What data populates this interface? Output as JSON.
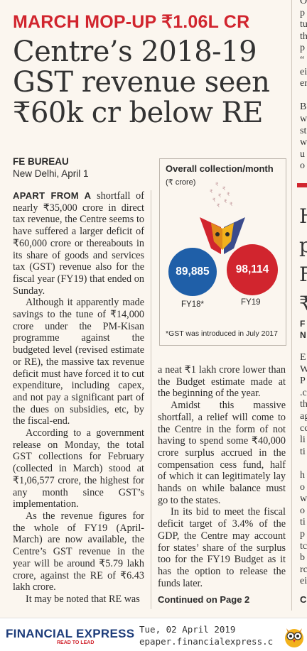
{
  "kicker": "MARCH MOP-UP ₹1.06L CR",
  "headline": "Centre’s 2018-19 GST revenue seen ₹60k cr below RE",
  "byline": {
    "source": "FE BUREAU",
    "dateline": "New Delhi, April 1"
  },
  "col1": {
    "lead": "APART FROM A",
    "p1_rest": " shortfall of nearly ₹35,000 crore in direct tax revenue, the Centre seems to have suffered a larger deficit of ₹60,000 crore or thereabouts in its share of goods and services tax (GST) revenue also for the fiscal year (FY19) that ended on Sunday.",
    "p2": "Although it apparently made savings to the tune of ₹14,000 crore under the PM-Kisan programme against the budgeted level (revised estimate or RE), the massive tax revenue deficit must have forced it to cut expenditure, including capex, and not pay a significant part of the dues on subsidies, etc, by the fiscal-end.",
    "p3": "According to a government release on Monday, the total GST collections for February (collected in March) stood at ₹1,06,577 crore, the highest for any month since GST’s implementation.",
    "p4": "As the revenue figures for the whole of FY19 (April-March) are now available, the Centre’s GST revenue in the year will be around ₹5.79 lakh crore, against the RE of ₹6.43 lakh crore.",
    "p5": "It may be noted that RE was"
  },
  "col2": {
    "p1": "a neat ₹1 lakh crore lower than the Budget estimate made at the beginning of the year.",
    "p2": "Amidst this massive shortfall, a relief will come to the Centre in the form of not having to spend some ₹40,000 crore surplus accrued in the compensation cess fund, half of which it can legitimately lay hands on while balance must go to the states.",
    "p3": "In its bid to meet the fiscal deficit target of 3.4% of the GDP, the Centre may account for states’ share of the surplus too for the FY19 Budget as it has the option to release the funds later."
  },
  "continued": "Continued on Page 2",
  "chart": {
    "title": "Overall collection/month",
    "unit": "(₹ crore)",
    "note": "*GST was introduced in July 2017",
    "colors": {
      "fy18": "#1f5fa8",
      "fy19": "#d1252e"
    }
  },
  "chart_data": {
    "type": "bubble",
    "title": "Overall collection/month",
    "unit": "₹ crore",
    "categories": [
      "FY18*",
      "FY19"
    ],
    "values": [
      89885,
      98114
    ],
    "value_labels": [
      "89,885",
      "98,114"
    ],
    "note": "*GST was introduced in July 2017"
  },
  "right_strip": {
    "top_lines": [
      "O",
      "p",
      "tu",
      "th",
      "p",
      "“",
      "ei",
      "er",
      "",
      "B",
      "w",
      "st",
      "w",
      "u",
      "o"
    ],
    "headline_lines": [
      "H",
      "p",
      "F",
      "₹"
    ],
    "by_lines": [
      "F",
      "N"
    ],
    "body_lines": [
      "E",
      "W",
      "P",
      ".c",
      "th",
      "ag",
      "cc",
      "li",
      "ti",
      "",
      "h",
      "o",
      "w",
      "o",
      "ti",
      "p",
      "tc",
      "b",
      "rc",
      "ei"
    ],
    "bottom": "C"
  },
  "footer": {
    "logo": "FINANCIAL EXPRESS",
    "tagline": "READ TO LEAD",
    "date": "Tue, 02 April 2019",
    "url": "epaper.financialexpress.c"
  }
}
